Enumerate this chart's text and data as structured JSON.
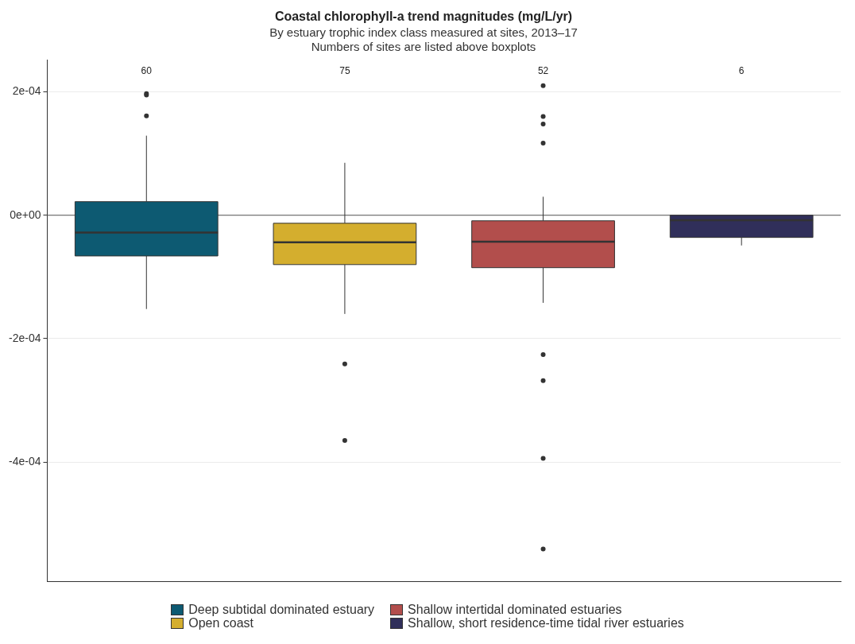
{
  "chart_data": {
    "type": "box",
    "title": "Coastal chlorophyll-a trend magnitudes (mg/L/yr)",
    "subtitle": "By estuary trophic index class measured at sites, 2013–17\nNumbers of sites are listed above boxplots",
    "categories": [
      null,
      null,
      null,
      null
    ],
    "series": [
      {
        "name": "Deep subtidal dominated estuary",
        "color": "#0d5a72",
        "boxes": [
          {
            "low": -0.000152,
            "q1": -6.6e-05,
            "median": -2.8e-05,
            "q3": 2.2e-05,
            "high": 0.000129,
            "outliers": [
              0.000161,
              0.000195,
              0.000197
            ]
          },
          null,
          null,
          null
        ]
      },
      {
        "name": "Open coast",
        "color": "#d4ae2e",
        "boxes": [
          null,
          {
            "low": -0.00016,
            "q1": -8e-05,
            "median": -4.4e-05,
            "q3": -1.3e-05,
            "high": 8.5e-05,
            "outliers": [
              -0.000241,
              -0.000365
            ]
          },
          null,
          null
        ]
      },
      {
        "name": "Shallow intertidal dominated estuaries",
        "color": "#b24e4c",
        "boxes": [
          null,
          null,
          {
            "low": -0.000142,
            "q1": -8.5e-05,
            "median": -4.3e-05,
            "q3": -9e-06,
            "high": 3e-05,
            "outliers": [
              0.00021,
              0.00016,
              0.000148,
              0.000117,
              -0.000226,
              -0.000268,
              -0.000394,
              -0.000541
            ]
          },
          null
        ]
      },
      {
        "name": "Shallow, short residence-time tidal river estuaries",
        "color": "#302f5a",
        "boxes": [
          null,
          null,
          null,
          {
            "low": -4.9e-05,
            "q1": -3.6e-05,
            "median": -8e-06,
            "q3": 0,
            "high": 0
          }
        ]
      }
    ],
    "annotations": [
      "60",
      "75",
      "52",
      "6"
    ],
    "ref_lines": [
      {
        "axis": "y",
        "value": 0,
        "color": "#555555"
      }
    ],
    "ylim": [
      -0.000594,
      0.000252
    ],
    "yticks": [
      {
        "value": 0.0002,
        "label": "2e-04"
      },
      {
        "value": 0,
        "label": "0e+00"
      },
      {
        "value": -0.0002,
        "label": "-2e-04"
      },
      {
        "value": -0.0004,
        "label": "-4e-04"
      }
    ],
    "grid": "y",
    "legend": "bottom",
    "tick_labels": "y"
  }
}
